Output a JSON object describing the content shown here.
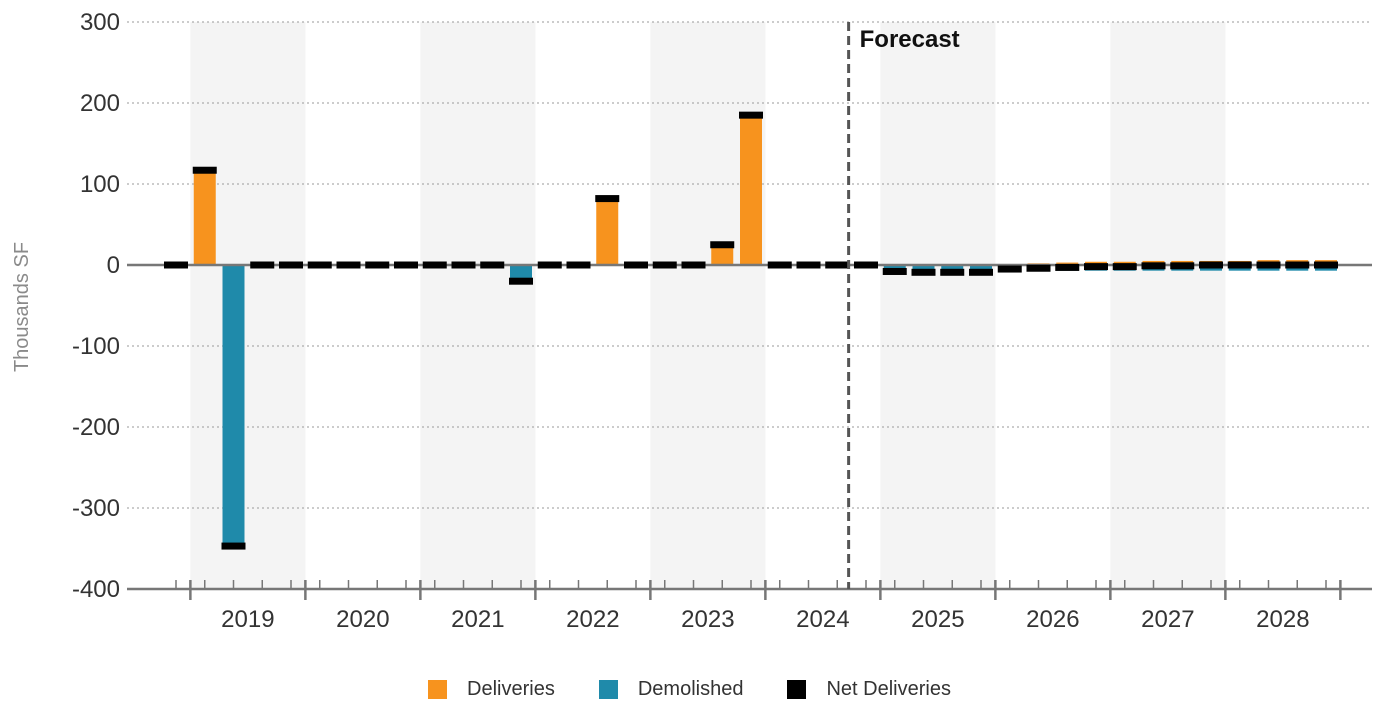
{
  "chart_data": {
    "type": "bar",
    "title": "",
    "xlabel": "",
    "ylabel": "Thousands SF",
    "ylim": [
      -400,
      300
    ],
    "yticks": [
      "300",
      "200",
      "100",
      "0",
      "-100",
      "-200",
      "-300",
      "-400"
    ],
    "year_labels": [
      "2019",
      "2020",
      "2021",
      "2022",
      "2023",
      "2024",
      "2025",
      "2026",
      "2027",
      "2028"
    ],
    "forecast_label": "Forecast",
    "forecast_starts_after": "2024 Q3",
    "grid": true,
    "legend_position": "bottom-center",
    "colors": {
      "deliveries": "#F7931E",
      "demolished": "#1F8AAA",
      "net": "#000000",
      "band": "#F4F4F4"
    },
    "categories": [
      "2018 Q4",
      "2019 Q1",
      "2019 Q2",
      "2019 Q3",
      "2019 Q4",
      "2020 Q1",
      "2020 Q2",
      "2020 Q3",
      "2020 Q4",
      "2021 Q1",
      "2021 Q2",
      "2021 Q3",
      "2021 Q4",
      "2022 Q1",
      "2022 Q2",
      "2022 Q3",
      "2022 Q4",
      "2023 Q1",
      "2023 Q2",
      "2023 Q3",
      "2023 Q4",
      "2024 Q1",
      "2024 Q2",
      "2024 Q3",
      "2024 Q4",
      "2025 Q1",
      "2025 Q2",
      "2025 Q3",
      "2025 Q4",
      "2026 Q1",
      "2026 Q2",
      "2026 Q3",
      "2026 Q4",
      "2027 Q1",
      "2027 Q2",
      "2027 Q3",
      "2027 Q4",
      "2028 Q1",
      "2028 Q2",
      "2028 Q3",
      "2028 Q4"
    ],
    "series": [
      {
        "name": "Deliveries",
        "values": [
          0,
          117,
          0,
          0,
          0,
          0,
          0,
          0,
          0,
          0,
          0,
          0,
          0,
          0,
          0,
          82,
          0,
          0,
          0,
          25,
          185,
          0,
          0,
          0,
          0,
          0,
          0,
          0,
          0,
          1,
          2,
          3,
          4,
          4,
          5,
          5,
          5,
          5,
          6,
          6,
          6
        ]
      },
      {
        "name": "Demolished",
        "values": [
          0,
          0,
          -347,
          0,
          0,
          0,
          0,
          0,
          0,
          0,
          0,
          0,
          -20,
          0,
          0,
          0,
          0,
          0,
          0,
          0,
          0,
          0,
          0,
          0,
          0,
          -8,
          -9,
          -9,
          -9,
          -6,
          -6,
          -7,
          -7,
          -7,
          -7,
          -7,
          -7,
          -7,
          -7,
          -7,
          -7
        ]
      },
      {
        "name": "Net Deliveries",
        "values": [
          0,
          117,
          -347,
          0,
          0,
          0,
          0,
          0,
          0,
          0,
          0,
          0,
          -20,
          0,
          0,
          82,
          0,
          0,
          0,
          25,
          185,
          0,
          0,
          0,
          0,
          -8,
          -9,
          -9,
          -9,
          -5,
          -4,
          -3,
          -2,
          -2,
          -1,
          -1,
          0,
          0,
          0,
          0,
          0
        ]
      }
    ]
  }
}
